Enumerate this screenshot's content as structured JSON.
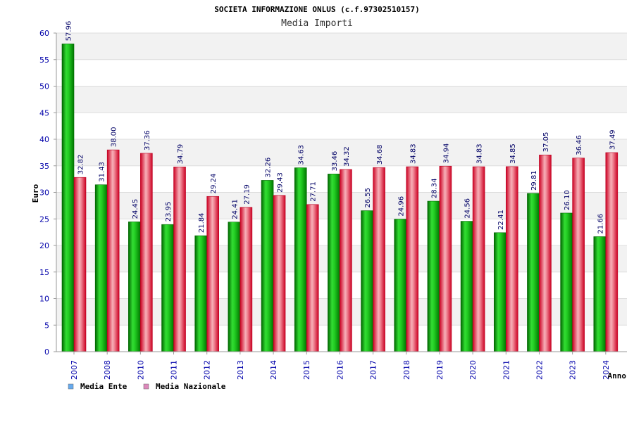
{
  "chart_data": {
    "type": "bar",
    "title": "SOCIETA INFORMAZIONE ONLUS (c.f.97302510157)",
    "subtitle": "Media Importi",
    "xlabel": "Anno",
    "ylabel": "Euro",
    "ylim": [
      0,
      60
    ],
    "yticks": [
      0,
      5,
      10,
      15,
      20,
      25,
      30,
      35,
      40,
      45,
      50,
      55,
      60
    ],
    "grid": true,
    "legend_position": "bottom-left",
    "categories": [
      "2007",
      "2008",
      "2010",
      "2011",
      "2012",
      "2013",
      "2014",
      "2015",
      "2016",
      "2017",
      "2018",
      "2019",
      "2020",
      "2021",
      "2022",
      "2023",
      "2024"
    ],
    "series": [
      {
        "name": "Media Ente",
        "color": "#00aa00",
        "legend_color": "#66aaee",
        "values": [
          57.96,
          31.43,
          24.45,
          23.95,
          21.84,
          24.41,
          32.26,
          34.63,
          33.46,
          26.55,
          24.96,
          28.34,
          24.56,
          22.41,
          29.81,
          26.1,
          21.66
        ],
        "labels": [
          "57.96",
          "31.43",
          "24.45",
          "23.95",
          "21.84",
          "24.41",
          "32.26",
          "34.63",
          "33.46",
          "26.55",
          "24.96",
          "28.34",
          "24.56",
          "22.41",
          "29.81",
          "26.10",
          "21.66"
        ]
      },
      {
        "name": "Media Nazionale",
        "color": "#dd2233",
        "legend_color": "#dd88bb",
        "values": [
          32.82,
          38.0,
          37.36,
          34.79,
          29.24,
          27.19,
          29.43,
          27.71,
          34.32,
          34.68,
          34.83,
          34.94,
          34.83,
          34.85,
          37.05,
          36.46,
          37.49
        ],
        "labels": [
          "32.82",
          "38.00",
          "37.36",
          "34.79",
          "29.24",
          "27.19",
          "29.43",
          "27.71",
          "34.32",
          "34.68",
          "34.83",
          "34.94",
          "34.83",
          "34.85",
          "37.05",
          "36.46",
          "37.49"
        ]
      }
    ]
  }
}
